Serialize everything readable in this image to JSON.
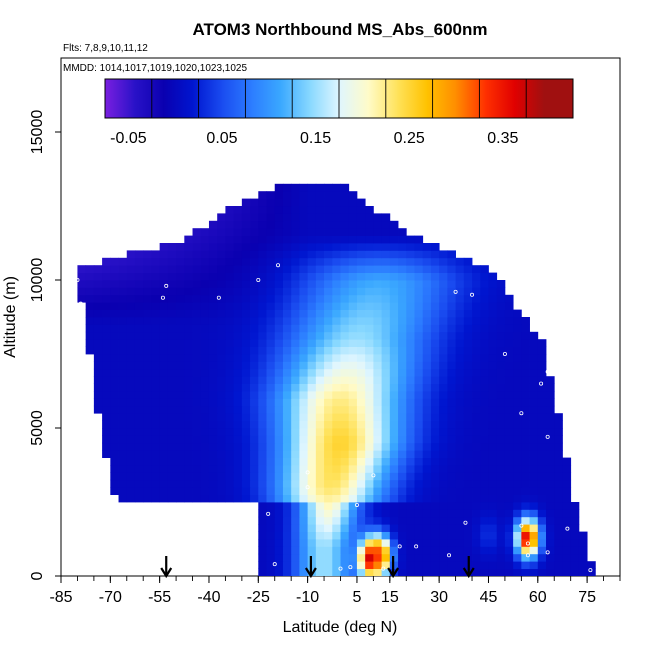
{
  "chart_data": {
    "type": "heatmap",
    "title": "ATOM3 Northbound MS_Abs_600nm",
    "flights_label": "Flts: 7,8,9,10,11,12",
    "mmdd_label": "MMDD: 1014,1017,1019,1020,1023,1025",
    "xlabel": "Latitude (deg N)",
    "ylabel": "Altitude (m)",
    "xlim": [
      -85,
      85
    ],
    "ylim": [
      0,
      17500
    ],
    "x_ticks": [
      -85,
      -70,
      -55,
      -40,
      -25,
      -10,
      5,
      15,
      30,
      45,
      60,
      75
    ],
    "y_ticks": [
      0,
      5000,
      10000,
      15000
    ],
    "colorbar": {
      "range": [
        -0.075,
        0.425
      ],
      "tick_values": [
        -0.05,
        0.05,
        0.15,
        0.25,
        0.35
      ],
      "tick_labels": [
        "-0.05",
        "0.05",
        "0.15",
        "0.25",
        "0.35"
      ],
      "colors": [
        "#7a1fe0",
        "#2a12c8",
        "#0a00b0",
        "#0016d0",
        "#1a4cf0",
        "#2c7cff",
        "#3aa8ff",
        "#88d8ff",
        "#dff6ff",
        "#fffbc8",
        "#ffe25a",
        "#ffc200",
        "#ff8c00",
        "#ff3000",
        "#e00000",
        "#a01010"
      ]
    },
    "field_bounds": [
      {
        "alt": 0,
        "lat_min": -25,
        "lat_max": 78
      },
      {
        "alt": 2000,
        "lat_min": -67,
        "lat_max": 72
      },
      {
        "alt": 5000,
        "lat_min": -73,
        "lat_max": 67
      },
      {
        "alt": 8000,
        "lat_min": -77,
        "lat_max": 61
      },
      {
        "alt": 10000,
        "lat_min": -80,
        "lat_max": 48
      },
      {
        "alt": 10400,
        "lat_min": -80,
        "lat_max": 44
      },
      {
        "alt": 11400,
        "lat_min": -47,
        "lat_max": 24
      },
      {
        "alt": 12500,
        "lat_min": -33,
        "lat_max": 9
      },
      {
        "alt": 13300,
        "lat_min": -15,
        "lat_max": 0
      }
    ],
    "field_gaps": [
      {
        "alt_min": 0,
        "alt_max": 2400,
        "lat_min": -67,
        "lat_max": -25
      }
    ],
    "plume_core": [
      {
        "alt": 1000,
        "lat": -5,
        "value": 0.16
      },
      {
        "alt": 3000,
        "lat": -3,
        "value": 0.25
      },
      {
        "alt": 4500,
        "lat": 0,
        "value": 0.27
      },
      {
        "alt": 6000,
        "lat": 0,
        "value": 0.24
      },
      {
        "alt": 8000,
        "lat": 5,
        "value": 0.16
      },
      {
        "alt": 10000,
        "lat": 12,
        "value": 0.12
      }
    ],
    "hotspots": [
      {
        "lat": 9,
        "alt": 600,
        "value": 0.4
      },
      {
        "lat": 12,
        "alt": 700,
        "value": 0.36
      },
      {
        "lat": 45,
        "alt": 1400,
        "value": 0.04
      },
      {
        "lat": 57,
        "alt": 1300,
        "value": 0.4
      }
    ],
    "sample_points": [
      [
        -80,
        10000
      ],
      [
        -79,
        9200
      ],
      [
        -53,
        9800
      ],
      [
        -54,
        9400
      ],
      [
        -37,
        9400
      ],
      [
        -25,
        10000
      ],
      [
        -19,
        10500
      ],
      [
        35,
        9600
      ],
      [
        40,
        9500
      ],
      [
        57,
        9000
      ],
      [
        50,
        7500
      ],
      [
        63,
        6900
      ],
      [
        61,
        6500
      ],
      [
        55,
        5500
      ],
      [
        63,
        4700
      ],
      [
        -10,
        3500
      ],
      [
        10,
        3400
      ],
      [
        5,
        2400
      ],
      [
        -22,
        2100
      ],
      [
        -43,
        1600
      ],
      [
        38,
        1800
      ],
      [
        55,
        1700
      ],
      [
        69,
        1600
      ],
      [
        63,
        800
      ],
      [
        57,
        1100
      ],
      [
        57,
        700
      ],
      [
        33,
        700
      ],
      [
        23,
        1000
      ],
      [
        18,
        1000
      ],
      [
        -32,
        800
      ],
      [
        -20,
        400
      ],
      [
        3,
        300
      ],
      [
        13,
        250
      ],
      [
        0,
        250
      ],
      [
        76,
        200
      ],
      [
        -10,
        3000
      ]
    ],
    "flight_arrows": [
      -53,
      -9,
      16,
      39
    ],
    "grid": false
  }
}
